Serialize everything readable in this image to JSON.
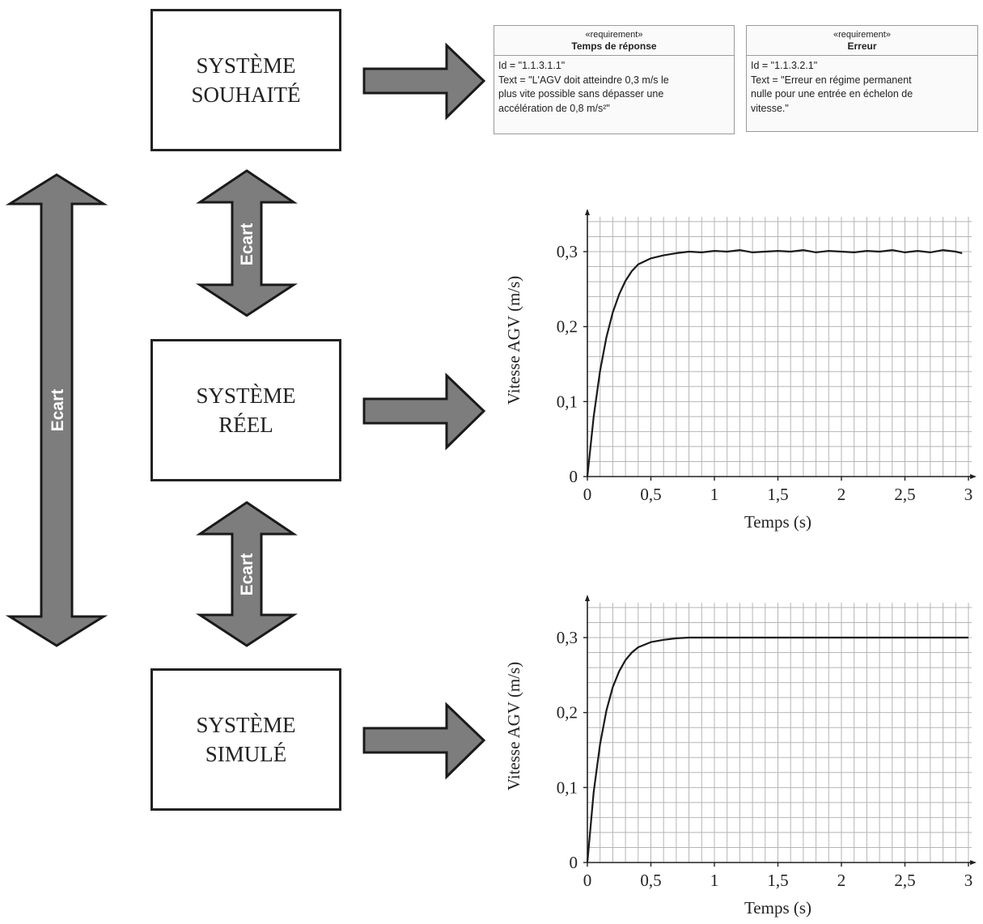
{
  "systems": {
    "desired": {
      "line1": "SYSTÈME",
      "line2": "SOUHAITÉ"
    },
    "real": {
      "line1": "SYSTÈME",
      "line2": "RÉEL"
    },
    "simulated": {
      "line1": "SYSTÈME",
      "line2": "SIMULÉ"
    }
  },
  "arrows": {
    "ecart_long": "Ecart",
    "ecart_upper": "Ecart",
    "ecart_lower": "Ecart"
  },
  "requirements": [
    {
      "stereotype": "«requirement»",
      "name": "Temps de réponse",
      "body": [
        "Id = \"1.1.3.1.1\"",
        "Text = \"L'AGV doit atteindre 0,3 m/s le",
        "plus vite possible sans dépasser une",
        "accélération de 0,8 m/s²\""
      ]
    },
    {
      "stereotype": "«requirement»",
      "name": "Erreur",
      "body": [
        "Id = \"1.1.3.2.1\"",
        "Text = \"Erreur en régime permanent",
        "nulle pour une entrée en échelon de",
        "vitesse.\""
      ]
    }
  ],
  "colors": {
    "arrow_fill": "#7d7d7d",
    "arrow_stroke": "#1a1a1a",
    "grid": "#b5b5b5",
    "curve": "#1a1a1a"
  },
  "chart_data": [
    {
      "type": "line",
      "name": "real",
      "xlabel": "Temps (s)",
      "ylabel": "Vitesse AGV (m/s)",
      "xlim": [
        0,
        3
      ],
      "ylim": [
        0,
        0.3
      ],
      "xticks": [
        0,
        0.5,
        1,
        1.5,
        2,
        2.5,
        3
      ],
      "xtick_labels": [
        "0",
        "0,5",
        "1",
        "1,5",
        "2",
        "2,5",
        "3"
      ],
      "yticks": [
        0,
        0.1,
        0.2,
        0.3
      ],
      "ytick_labels": [
        "0",
        "0,1",
        "0,2",
        "0,3"
      ],
      "grid": true,
      "series": [
        {
          "x": [
            0,
            0.05,
            0.1,
            0.15,
            0.2,
            0.25,
            0.3,
            0.35,
            0.4,
            0.5,
            0.6,
            0.7,
            0.8,
            0.9,
            1.0,
            1.1,
            1.2,
            1.3,
            1.4,
            1.5,
            1.6,
            1.7,
            1.8,
            1.9,
            2.0,
            2.1,
            2.2,
            2.3,
            2.4,
            2.5,
            2.6,
            2.7,
            2.8,
            2.9,
            2.95
          ],
          "y": [
            0,
            0.08,
            0.141,
            0.186,
            0.219,
            0.243,
            0.261,
            0.274,
            0.283,
            0.291,
            0.295,
            0.298,
            0.3,
            0.299,
            0.301,
            0.3,
            0.302,
            0.299,
            0.3,
            0.301,
            0.3,
            0.302,
            0.299,
            0.301,
            0.3,
            0.299,
            0.301,
            0.3,
            0.302,
            0.299,
            0.301,
            0.299,
            0.302,
            0.3,
            0.298
          ]
        }
      ]
    },
    {
      "type": "line",
      "name": "simulated",
      "xlabel": "Temps (s)",
      "ylabel": "Vitesse AGV (m/s)",
      "xlim": [
        0,
        3
      ],
      "ylim": [
        0,
        0.3
      ],
      "xticks": [
        0,
        0.5,
        1,
        1.5,
        2,
        2.5,
        3
      ],
      "xtick_labels": [
        "0",
        "0,5",
        "1",
        "1,5",
        "2",
        "2,5",
        "3"
      ],
      "yticks": [
        0,
        0.1,
        0.2,
        0.3
      ],
      "ytick_labels": [
        "0",
        "0,1",
        "0,2",
        "0,3"
      ],
      "grid": true,
      "series": [
        {
          "x": [
            0,
            0.05,
            0.1,
            0.15,
            0.2,
            0.25,
            0.3,
            0.35,
            0.4,
            0.5,
            0.6,
            0.7,
            0.8,
            1.0,
            1.5,
            2.0,
            2.5,
            3.0
          ],
          "y": [
            0,
            0.094,
            0.158,
            0.203,
            0.234,
            0.255,
            0.27,
            0.28,
            0.287,
            0.294,
            0.297,
            0.299,
            0.3,
            0.3,
            0.3,
            0.3,
            0.3,
            0.3
          ]
        }
      ]
    }
  ]
}
